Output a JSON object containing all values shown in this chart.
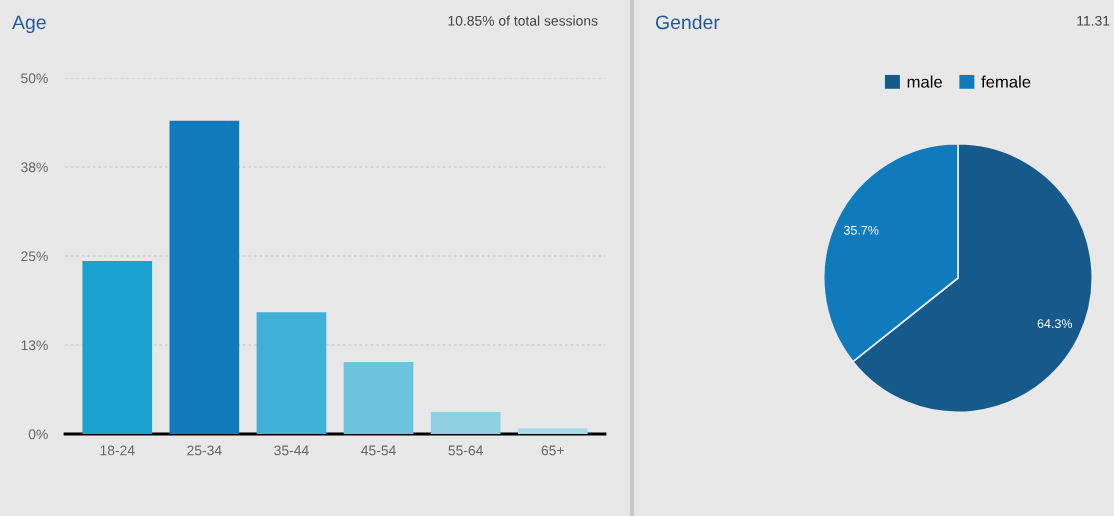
{
  "chart_data": [
    {
      "type": "bar",
      "title": "Age",
      "subtitle": "10.85% of total sessions",
      "categories": [
        "18-24",
        "25-34",
        "35-44",
        "45-54",
        "55-64",
        "65+"
      ],
      "values": [
        24.3,
        44.0,
        17.1,
        10.1,
        3.1,
        0.8
      ],
      "colors": [
        "#1aa3d1",
        "#0f7bbd",
        "#3fb1d8",
        "#6cc4dc",
        "#8dd1e2",
        "#a5dbe7"
      ],
      "ylim": [
        0,
        50
      ],
      "yticks": [
        {
          "value": 0,
          "label": "0%"
        },
        {
          "value": 12.5,
          "label": "13%"
        },
        {
          "value": 25,
          "label": "25%"
        },
        {
          "value": 37.5,
          "label": "38%"
        },
        {
          "value": 50,
          "label": "50%"
        }
      ],
      "grid": "y"
    },
    {
      "type": "pie",
      "title": "Gender",
      "subtitle": "11.31",
      "categories": [
        "male",
        "female"
      ],
      "values": [
        64.3,
        35.7
      ],
      "colors": [
        "#165a8c",
        "#0f7bbd"
      ],
      "value_labels": [
        "64.3%",
        "35.7%"
      ],
      "legend": "top"
    }
  ]
}
